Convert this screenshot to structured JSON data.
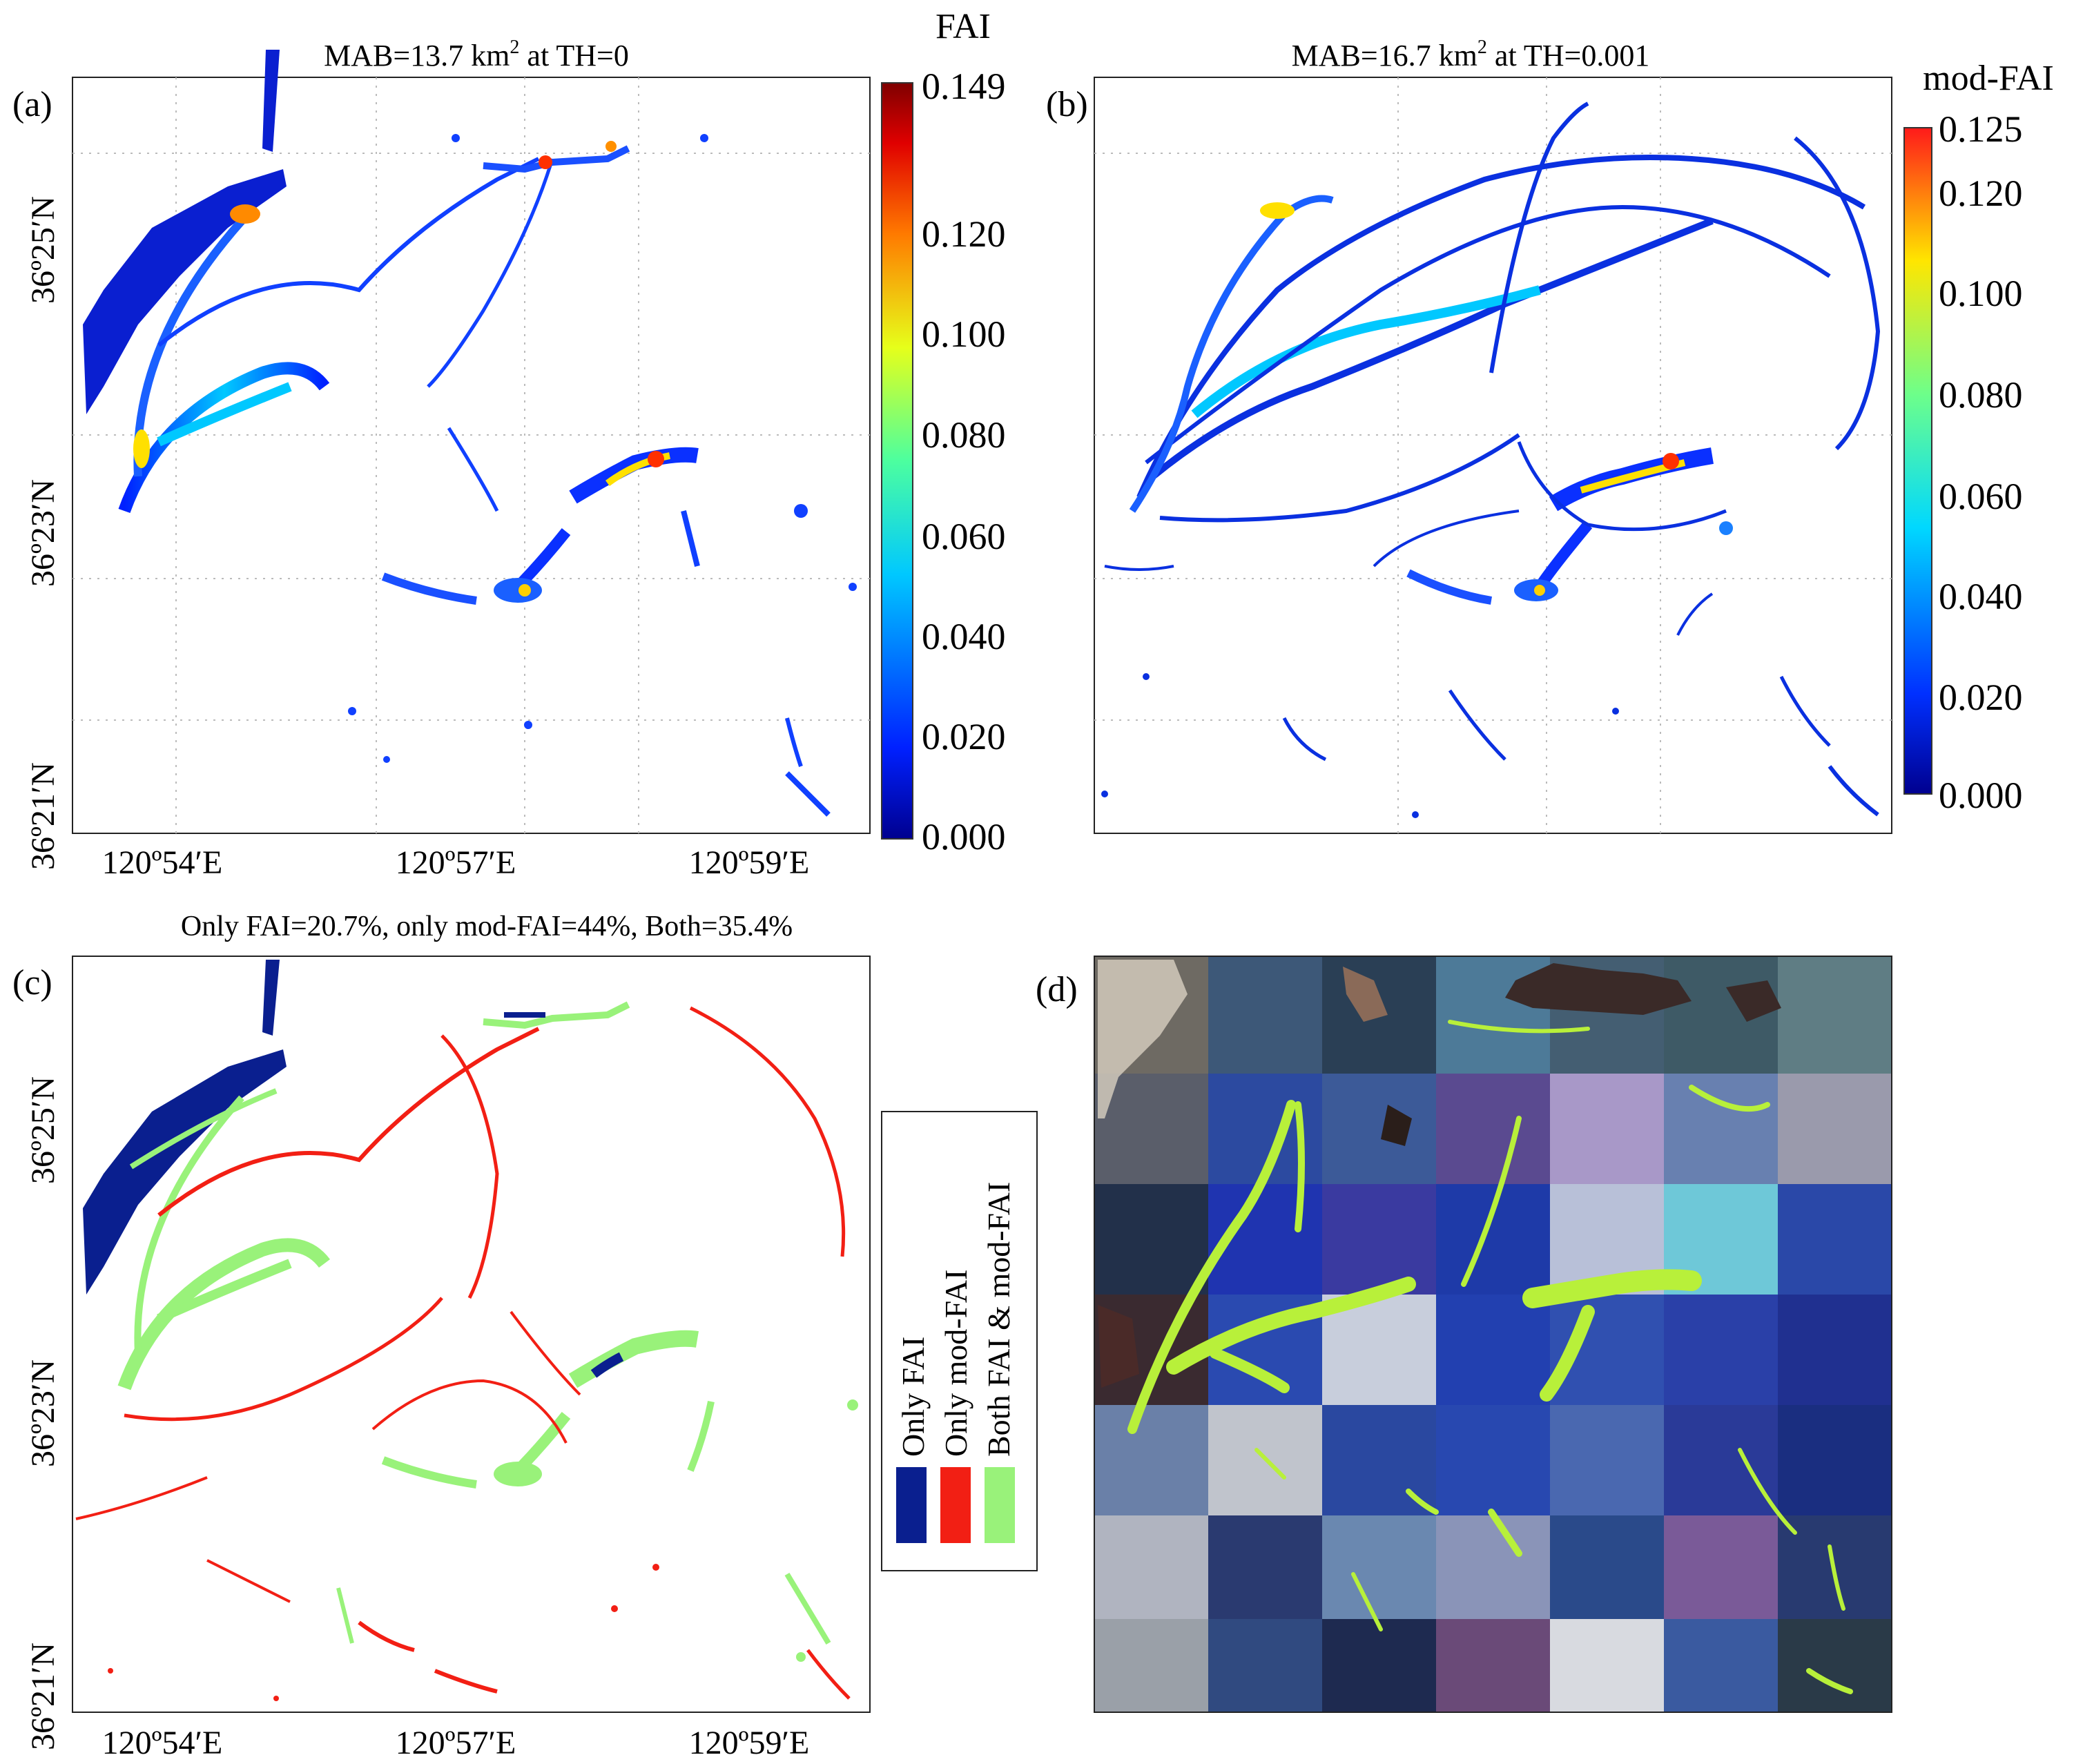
{
  "panel_a": {
    "label": "(a)",
    "title_prefix": "MAB=13.7 km",
    "title_sup": "2",
    "title_suffix": " at TH=0",
    "colorbar_title": "FAI",
    "colorbar_ticks": [
      "0.149",
      "0.120",
      "0.100",
      "0.080",
      "0.060",
      "0.040",
      "0.020",
      "0.000"
    ]
  },
  "panel_b": {
    "label": "(b)",
    "title_prefix": "MAB=16.7 km",
    "title_sup": "2",
    "title_suffix": " at TH=0.001",
    "colorbar_title": "mod-FAI",
    "colorbar_ticks": [
      "0.125",
      "0.120",
      "0.100",
      "0.080",
      "0.060",
      "0.040",
      "0.020",
      "0.000"
    ]
  },
  "panel_c": {
    "label": "(c)",
    "title": "Only FAI=20.7%, only mod-FAI=44%, Both=35.4%",
    "legend": [
      {
        "label": "Only FAI",
        "color": "#0a1f8f"
      },
      {
        "label": "Only mod-FAI",
        "color": "#f21f14"
      },
      {
        "label": "Both FAI & mod-FAI",
        "color": "#99f27a"
      }
    ]
  },
  "panel_d": {
    "label": "(d)"
  },
  "axes": {
    "lat_labels": [
      "36º25′N",
      "36º23′N",
      "36º21′N"
    ],
    "lon_labels": [
      "120º54′E",
      "120º57′E",
      "120º59′E"
    ]
  },
  "colors": {
    "jet_low": "#00008f",
    "jet_high": "#7f0000",
    "algae_green": "#b8f03a",
    "sea_blue": "#1f3fb0"
  }
}
